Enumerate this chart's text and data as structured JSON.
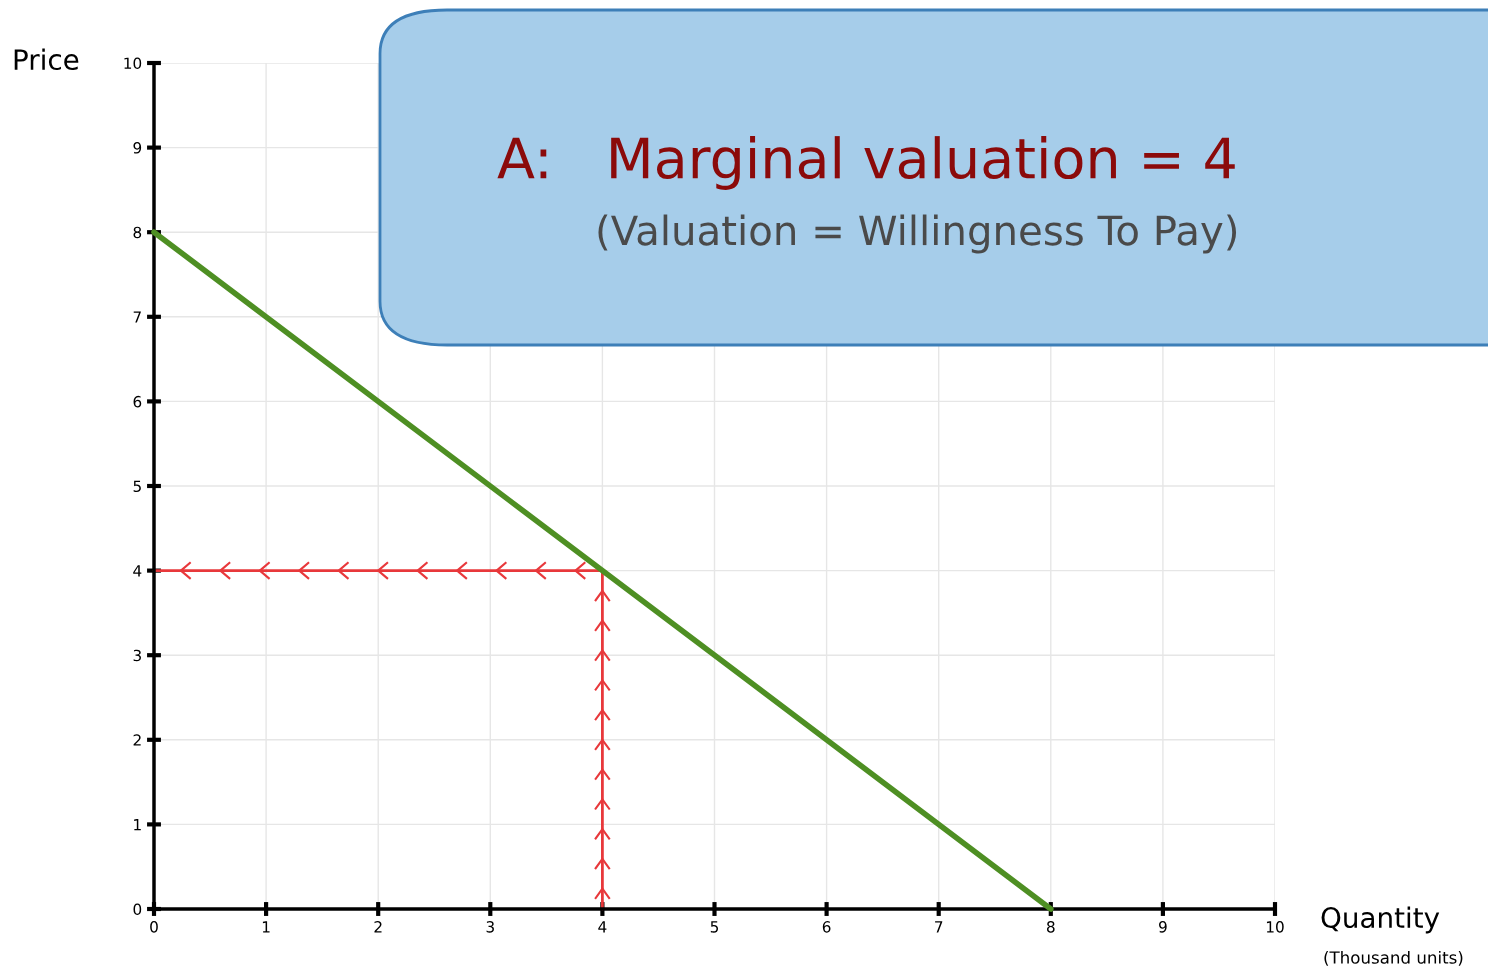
{
  "chart_data": {
    "type": "line",
    "xlabel": "Quantity",
    "ylabel": "Price",
    "annotations": [
      "A:   Marginal valuation = 4",
      "(Valuation = Willingness To Pay)",
      "(Thousand units)"
    ],
    "series": [
      {
        "color": "#4e8f23",
        "x": [
          0,
          8
        ],
        "values": [
          8,
          0
        ]
      },
      {
        "color": "#e8383b",
        "x": [
          4,
          0
        ],
        "values": [
          4,
          4
        ]
      },
      {
        "color": "#e8383b",
        "x": [
          4,
          4
        ],
        "values": [
          0,
          4
        ]
      }
    ],
    "xlim": [
      0,
      10
    ],
    "ylim": [
      0,
      10
    ],
    "xticks": [
      0,
      1,
      2,
      3,
      4,
      5,
      6,
      7,
      8,
      9,
      10
    ],
    "yticks": [
      0,
      1,
      2,
      3,
      4,
      5,
      6,
      7,
      8,
      9,
      10
    ],
    "grid": true,
    "marker": "none",
    "line_style": "solid"
  }
}
